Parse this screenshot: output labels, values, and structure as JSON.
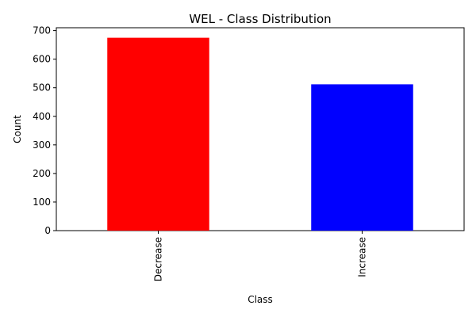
{
  "chart_data": {
    "type": "bar",
    "title": "WEL - Class Distribution",
    "xlabel": "Class",
    "ylabel": "Count",
    "categories": [
      "Decrease",
      "Increase"
    ],
    "values": [
      675,
      512
    ],
    "colors": [
      "#ff0000",
      "#0000ff"
    ],
    "ylim": [
      0,
      710
    ],
    "yticks": [
      0,
      100,
      200,
      300,
      400,
      500,
      600,
      700
    ],
    "ytick_labels": [
      "0",
      "100",
      "200",
      "300",
      "400",
      "500",
      "600",
      "700"
    ],
    "xtick_rotation": "vertical",
    "grid": false,
    "legend": false
  }
}
